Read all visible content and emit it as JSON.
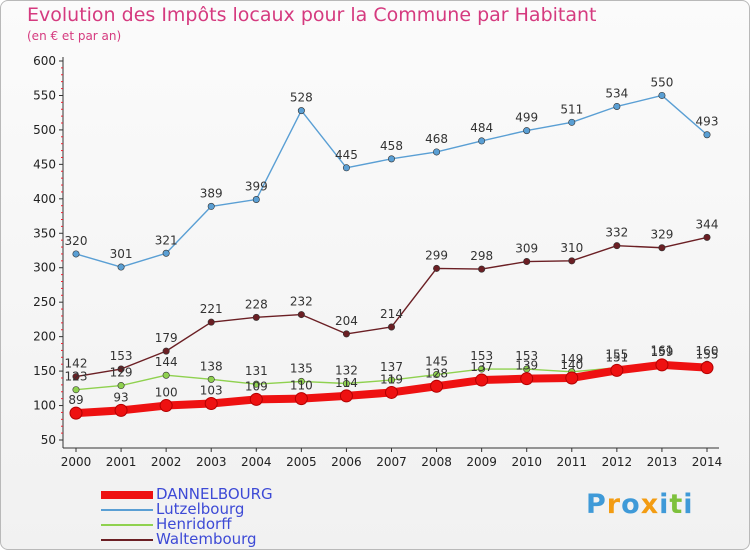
{
  "header": {
    "title": "Evolution des Impôts locaux pour la Commune par Habitant",
    "subtitle": "(en € et par an)"
  },
  "logo": {
    "text": "Proxiti",
    "colors": [
      "#3f9ad8",
      "#f39c12",
      "#3f9ad8",
      "#f39c12",
      "#3f9ad8",
      "#7ec13c",
      "#3f9ad8"
    ]
  },
  "chart_data": {
    "type": "line",
    "title": "Evolution des Impôts locaux pour la Commune par Habitant",
    "subtitle": "(en € et par an)",
    "x": [
      "2000",
      "2001",
      "2002",
      "2003",
      "2004",
      "2005",
      "2006",
      "2007",
      "2008",
      "2009",
      "2010",
      "2011",
      "2012",
      "2013",
      "2014"
    ],
    "ylim": [
      50,
      600
    ],
    "yticks": [
      50,
      100,
      150,
      200,
      250,
      300,
      350,
      400,
      450,
      500,
      550,
      600
    ],
    "grid": false,
    "legend_position": "bottom-left",
    "series": [
      {
        "name": "DANNELBOURG",
        "color": "#ee1111",
        "values": [
          89,
          93,
          100,
          103,
          109,
          110,
          114,
          119,
          128,
          137,
          139,
          140,
          151,
          159,
          155
        ],
        "labels": [
          "89",
          "93",
          "100",
          "103",
          "109",
          "110",
          "114",
          "119",
          "128",
          "137",
          "139",
          "140",
          "151",
          "159",
          "155"
        ]
      },
      {
        "name": "Lutzelbourg",
        "color": "#5a9fd4",
        "values": [
          320,
          301,
          321,
          389,
          399,
          528,
          445,
          458,
          468,
          484,
          499,
          511,
          534,
          550,
          493
        ],
        "labels": [
          "320",
          "301",
          "321",
          "389",
          "399",
          "528",
          "445",
          "458",
          "468",
          "484",
          "499",
          "511",
          "534",
          "550",
          "493"
        ]
      },
      {
        "name": "Henridorff",
        "color": "#8fd14f",
        "values": [
          123,
          129,
          144,
          138,
          131,
          135,
          132,
          137,
          145,
          153,
          153,
          149,
          155,
          161,
          160
        ],
        "labels": [
          "123",
          "129",
          "144",
          "138",
          "131",
          "135",
          "132",
          "137",
          "145",
          "153",
          "153",
          "149",
          "155",
          "161",
          "160"
        ]
      },
      {
        "name": "Waltembourg",
        "color": "#6b1f24",
        "values": [
          142,
          153,
          179,
          221,
          228,
          232,
          204,
          214,
          299,
          298,
          309,
          310,
          332,
          329,
          344
        ],
        "labels": [
          "142",
          "153",
          "179",
          "221",
          "228",
          "232",
          "204",
          "214",
          "299",
          "298",
          "309",
          "310",
          "332",
          "329",
          "344"
        ]
      }
    ]
  }
}
